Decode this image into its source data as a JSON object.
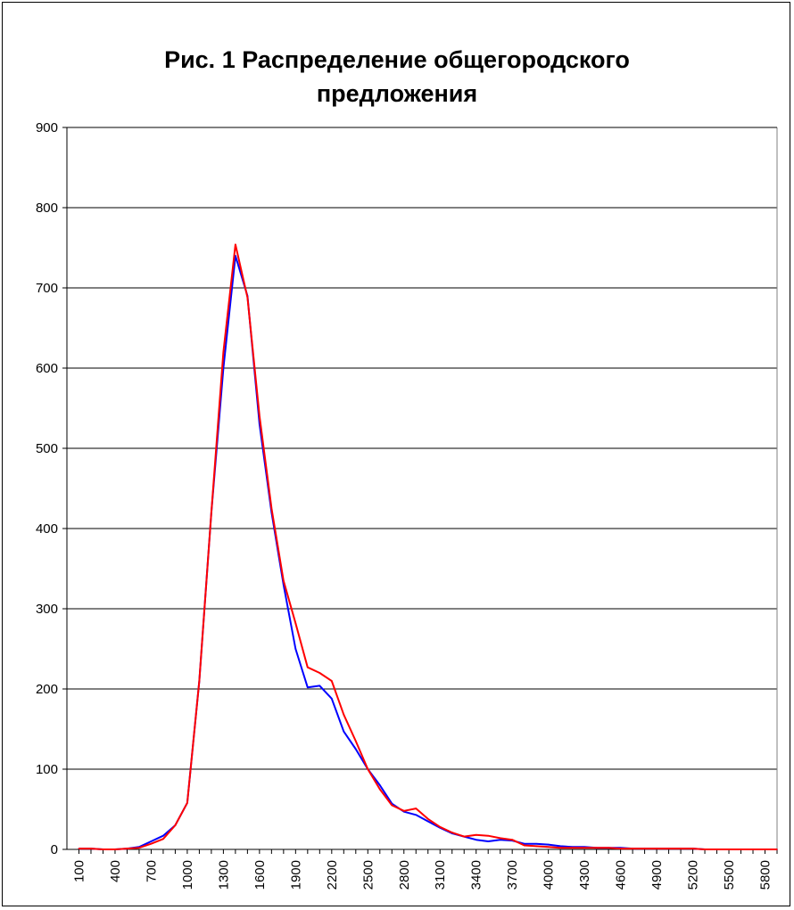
{
  "chart_data": {
    "type": "line",
    "title_lines": [
      "Рис. 1 Распределение общегородского",
      "предложения"
    ],
    "xlabel": "",
    "ylabel": "",
    "ylim": [
      0,
      900
    ],
    "yticks": [
      0,
      100,
      200,
      300,
      400,
      500,
      600,
      700,
      800,
      900
    ],
    "xlim": [
      0,
      5900
    ],
    "xtick_start": 100,
    "xtick_step": 100,
    "xticks_labeled": [
      100,
      400,
      700,
      1000,
      1300,
      1600,
      1900,
      2200,
      2500,
      2800,
      3100,
      3400,
      3700,
      4000,
      4300,
      4600,
      4900,
      5200,
      5500,
      5800
    ],
    "grid": "horizontal",
    "legend": "none",
    "series": [
      {
        "color": "#0000ff",
        "x": [
          100,
          200,
          300,
          400,
          500,
          600,
          700,
          800,
          900,
          1000,
          1100,
          1200,
          1300,
          1400,
          1500,
          1600,
          1700,
          1800,
          1900,
          2000,
          2100,
          2200,
          2300,
          2400,
          2500,
          2600,
          2700,
          2800,
          2900,
          3000,
          3100,
          3200,
          3300,
          3400,
          3500,
          3600,
          3700,
          3800,
          3900,
          4000,
          4100,
          4200,
          4300,
          4400,
          4500,
          4600,
          4700,
          4800,
          4900,
          5000,
          5100,
          5200,
          5300,
          5400,
          5500,
          5600,
          5700,
          5800,
          5900
        ],
        "values": [
          1,
          1,
          0,
          0,
          1,
          3,
          10,
          17,
          30,
          58,
          210,
          420,
          600,
          740,
          690,
          530,
          420,
          330,
          250,
          202,
          204,
          188,
          147,
          125,
          100,
          80,
          57,
          47,
          43,
          35,
          27,
          20,
          16,
          12,
          10,
          12,
          11,
          7,
          7,
          6,
          4,
          3,
          3,
          2,
          2,
          2,
          1,
          1,
          1,
          1,
          1,
          1,
          0,
          0,
          0,
          0,
          0,
          0,
          0
        ]
      },
      {
        "color": "#ff0000",
        "x": [
          100,
          200,
          300,
          400,
          500,
          600,
          700,
          800,
          900,
          1000,
          1100,
          1200,
          1300,
          1400,
          1500,
          1600,
          1700,
          1800,
          1900,
          2000,
          2100,
          2200,
          2300,
          2400,
          2500,
          2600,
          2700,
          2800,
          2900,
          3000,
          3100,
          3200,
          3300,
          3400,
          3500,
          3600,
          3700,
          3800,
          3900,
          4000,
          4100,
          4200,
          4300,
          4400,
          4500,
          4600,
          4700,
          4800,
          4900,
          5000,
          5100,
          5200,
          5300,
          5400,
          5500,
          5600,
          5700,
          5800,
          5900
        ],
        "values": [
          1,
          1,
          0,
          0,
          1,
          2,
          7,
          13,
          30,
          58,
          210,
          420,
          620,
          754,
          688,
          540,
          425,
          335,
          282,
          227,
          220,
          210,
          168,
          135,
          100,
          75,
          55,
          48,
          51,
          38,
          28,
          21,
          16,
          18,
          17,
          14,
          12,
          5,
          4,
          3,
          2,
          2,
          2,
          2,
          2,
          1,
          1,
          1,
          1,
          1,
          1,
          1,
          0,
          0,
          0,
          0,
          0,
          0,
          0
        ]
      }
    ]
  }
}
